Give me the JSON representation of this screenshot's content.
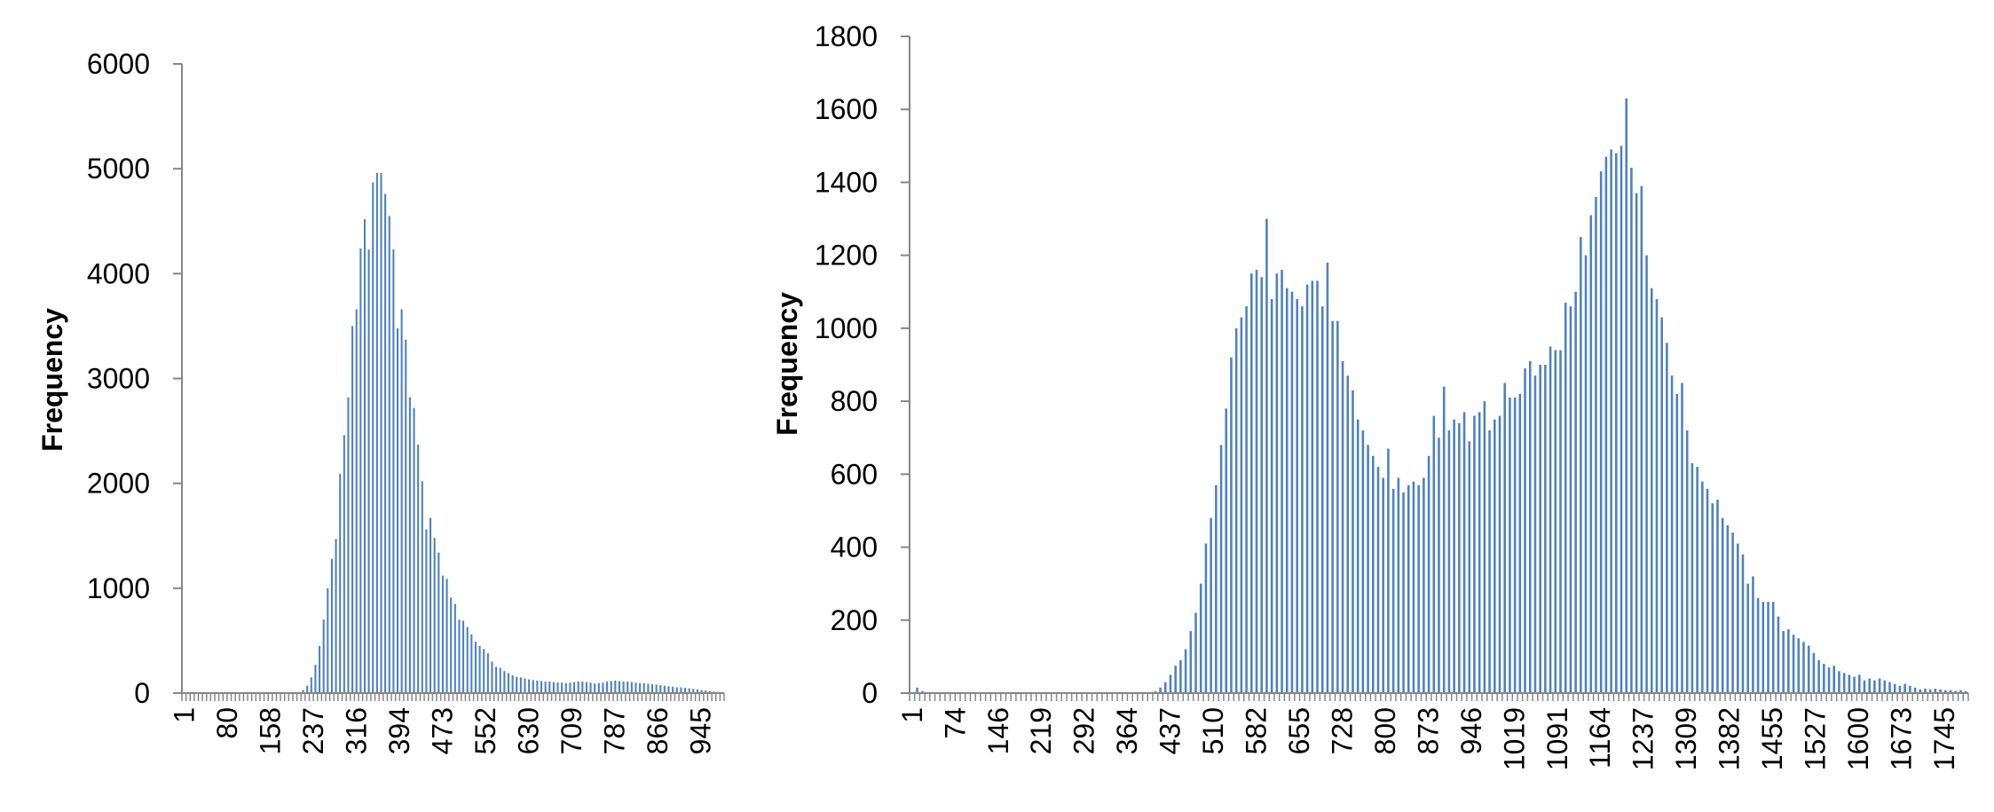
{
  "chart_data": [
    {
      "type": "bar",
      "title": "",
      "xlabel": "",
      "ylabel": "Frequency",
      "ylim": [
        0,
        6000
      ],
      "yticks": [
        0,
        1000,
        2000,
        3000,
        4000,
        5000,
        6000
      ],
      "xticks": [
        "1",
        "80",
        "158",
        "237",
        "316",
        "394",
        "473",
        "552",
        "630",
        "709",
        "787",
        "866",
        "945"
      ],
      "grid": false,
      "legend": "none",
      "bar_color": "#4F81BD",
      "values": [
        0,
        0,
        0,
        0,
        0,
        0,
        0,
        0,
        0,
        0,
        0,
        0,
        0,
        0,
        0,
        0,
        0,
        0,
        0,
        0,
        0,
        0,
        0,
        0,
        0,
        0,
        0,
        0,
        10,
        30,
        70,
        150,
        270,
        450,
        700,
        1000,
        1280,
        1470,
        2090,
        2460,
        2820,
        3500,
        3660,
        4240,
        4520,
        4230,
        4870,
        4960,
        4960,
        4760,
        4550,
        4230,
        3480,
        3660,
        3370,
        2820,
        2720,
        2370,
        2020,
        1560,
        1670,
        1480,
        1340,
        1120,
        1090,
        910,
        850,
        700,
        690,
        630,
        560,
        490,
        450,
        420,
        380,
        300,
        250,
        240,
        210,
        190,
        170,
        155,
        150,
        140,
        130,
        125,
        120,
        115,
        110,
        110,
        105,
        100,
        100,
        95,
        100,
        105,
        110,
        110,
        105,
        100,
        90,
        95,
        100,
        110,
        115,
        120,
        115,
        110,
        110,
        105,
        100,
        95,
        95,
        90,
        85,
        80,
        75,
        70,
        65,
        60,
        55,
        55,
        50,
        45,
        40,
        35,
        30,
        25,
        20,
        15,
        10,
        5
      ]
    },
    {
      "type": "bar",
      "title": "",
      "xlabel": "",
      "ylabel": "Frequency",
      "ylim": [
        0,
        1800
      ],
      "yticks": [
        0,
        200,
        400,
        600,
        800,
        1000,
        1200,
        1400,
        1600,
        1800
      ],
      "xticks": [
        "1",
        "74",
        "146",
        "219",
        "292",
        "364",
        "437",
        "510",
        "582",
        "655",
        "728",
        "800",
        "873",
        "946",
        "1019",
        "1091",
        "1164",
        "1237",
        "1309",
        "1382",
        "1455",
        "1527",
        "1600",
        "1673",
        "1745"
      ],
      "grid": false,
      "legend": "none",
      "bar_color": "#4F81BD",
      "values": [
        0,
        15,
        5,
        0,
        0,
        0,
        0,
        0,
        0,
        0,
        0,
        0,
        0,
        0,
        0,
        0,
        0,
        0,
        0,
        0,
        0,
        0,
        0,
        0,
        0,
        0,
        0,
        0,
        0,
        0,
        0,
        0,
        0,
        0,
        0,
        0,
        0,
        0,
        0,
        0,
        0,
        0,
        0,
        0,
        0,
        0,
        0,
        0,
        5,
        15,
        30,
        50,
        75,
        90,
        120,
        170,
        220,
        300,
        410,
        480,
        570,
        680,
        780,
        920,
        1000,
        1030,
        1060,
        1150,
        1160,
        1140,
        1300,
        1080,
        1150,
        1160,
        1110,
        1100,
        1080,
        1060,
        1120,
        1130,
        1130,
        1060,
        1180,
        1020,
        1020,
        910,
        870,
        830,
        750,
        720,
        680,
        650,
        620,
        590,
        670,
        560,
        590,
        550,
        570,
        580,
        570,
        590,
        650,
        760,
        700,
        840,
        720,
        750,
        740,
        770,
        690,
        760,
        770,
        800,
        720,
        750,
        760,
        850,
        810,
        810,
        820,
        890,
        910,
        870,
        900,
        900,
        950,
        940,
        940,
        1070,
        1060,
        1100,
        1250,
        1200,
        1310,
        1360,
        1430,
        1470,
        1490,
        1480,
        1500,
        1630,
        1440,
        1370,
        1390,
        1200,
        1110,
        1080,
        1030,
        960,
        870,
        820,
        850,
        720,
        630,
        620,
        580,
        560,
        520,
        530,
        480,
        460,
        440,
        410,
        380,
        300,
        320,
        260,
        250,
        250,
        250,
        210,
        170,
        175,
        160,
        150,
        140,
        130,
        110,
        90,
        80,
        70,
        75,
        60,
        55,
        50,
        45,
        50,
        35,
        40,
        35,
        40,
        35,
        30,
        25,
        20,
        25,
        20,
        15,
        10,
        12,
        10,
        12,
        10,
        8,
        8,
        6,
        8,
        5
      ]
    }
  ]
}
